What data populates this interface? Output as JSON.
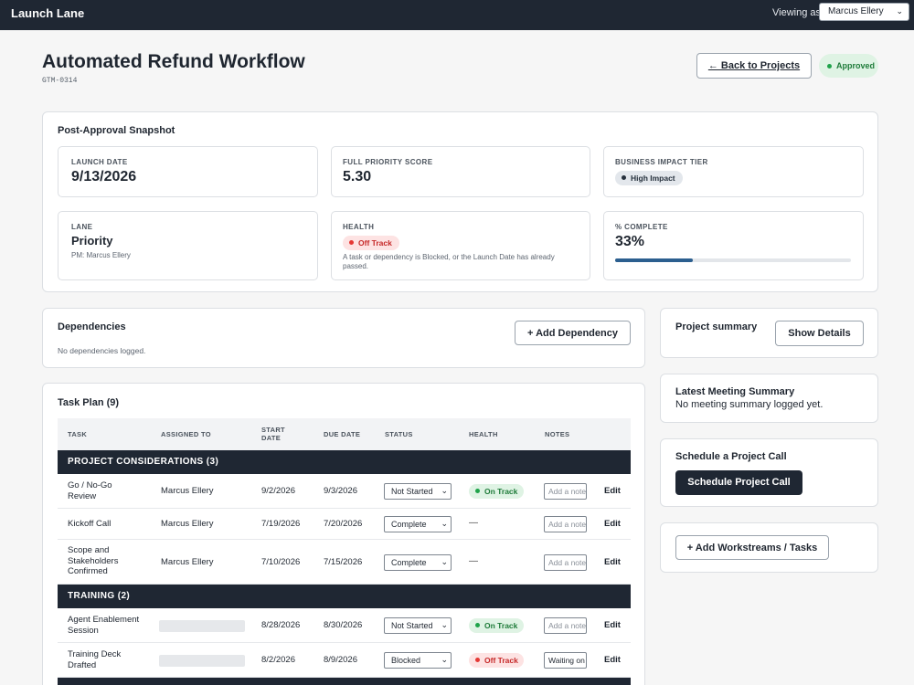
{
  "topbar": {
    "brand": "Launch Lane",
    "viewing_label": "Viewing as",
    "user": "Marcus Ellery"
  },
  "header": {
    "title": "Automated Refund Workflow",
    "code": "GTM-0314",
    "back_label": "← Back to Projects",
    "status": "Approved"
  },
  "snapshot": {
    "title": "Post-Approval Snapshot",
    "launch_date": {
      "label": "LAUNCH DATE",
      "value": "9/13/2026"
    },
    "priority_score": {
      "label": "FULL PRIORITY SCORE",
      "value": "5.30"
    },
    "impact": {
      "label": "BUSINESS IMPACT TIER",
      "value": "High Impact"
    },
    "lane": {
      "label": "LANE",
      "value": "Priority",
      "pm": "PM: Marcus Ellery"
    },
    "health": {
      "label": "HEALTH",
      "value": "Off Track",
      "note": "A task or dependency is Blocked, or the Launch Date has already passed."
    },
    "complete": {
      "label": "% COMPLETE",
      "value": "33%",
      "fraction": 0.33
    }
  },
  "dependencies": {
    "title": "Dependencies",
    "add_label": "+ Add Dependency",
    "empty": "No dependencies logged."
  },
  "taskplan": {
    "title": "Task Plan (9)",
    "columns": [
      "TASK",
      "ASSIGNED TO",
      "START DATE",
      "DUE DATE",
      "STATUS",
      "HEALTH",
      "NOTES"
    ],
    "groups": [
      "PROJECT CONSIDERATIONS (3)",
      "TRAINING (2)"
    ],
    "rows": [
      {
        "task": "Go / No-Go Review",
        "assignee": "Marcus Ellery",
        "start": "9/2/2026",
        "due": "9/3/2026",
        "status": "Not Started",
        "health": "On Track",
        "note": "Add a note",
        "edit": "Edit"
      },
      {
        "task": "Kickoff Call",
        "assignee": "Marcus Ellery",
        "start": "7/19/2026",
        "due": "7/20/2026",
        "status": "Complete",
        "health": "—",
        "note": "Add a note",
        "edit": "Edit"
      },
      {
        "task": "Scope and Stakeholders Confirmed",
        "assignee": "Marcus Ellery",
        "start": "7/10/2026",
        "due": "7/15/2026",
        "status": "Complete",
        "health": "—",
        "note": "Add a note",
        "edit": "Edit"
      },
      {
        "task": "Agent Enablement Session",
        "assignee": "",
        "start": "8/28/2026",
        "due": "8/30/2026",
        "status": "Not Started",
        "health": "On Track",
        "note": "Add a note",
        "edit": "Edit"
      },
      {
        "task": "Training Deck Drafted",
        "assignee": "",
        "start": "8/2/2026",
        "due": "8/9/2026",
        "status": "Blocked",
        "health": "Off Track",
        "note": "Waiting on",
        "edit": "Edit"
      }
    ]
  },
  "sidebar": {
    "summary_title": "Project summary",
    "show_details": "Show Details",
    "meeting_title": "Latest Meeting Summary",
    "meeting_text": "No meeting summary logged yet.",
    "call_title": "Schedule a Project Call",
    "call_button": "Schedule Project Call",
    "add_workstreams": "+ Add Workstreams / Tasks"
  }
}
